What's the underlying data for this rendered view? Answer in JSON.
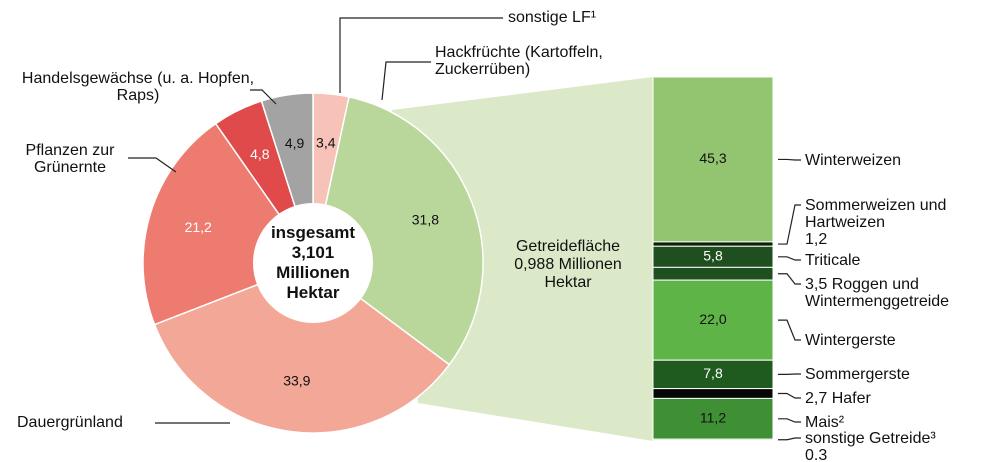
{
  "chart_data": [
    {
      "type": "pie",
      "center_label": "insgesamt 3,101 Millionen Hektar",
      "categories": [
        "Hackfrüchte (Kartoffeln, Zuckerrüben)",
        null,
        "Dauergrünland",
        "Pflanzen zur Grünernte",
        "Handelsgewächse (u. a. Hopfen, Raps)",
        "sonstige LF¹"
      ],
      "values": [
        3.4,
        31.8,
        33.9,
        21.2,
        4.8,
        4.9
      ],
      "value_labels": [
        "3,4",
        "31,8",
        "33,9",
        "21,2",
        "4,8",
        "4,9"
      ],
      "colors": [
        "#f7c2b7",
        "#b9d79b",
        "#f3a797",
        "#ee7b6f",
        "#e04a4a",
        "#a3a3a3"
      ]
    },
    {
      "type": "stacked-bar",
      "title": "Getreidefläche 0,988 Millionen Hektar",
      "categories": [
        "Winterweizen",
        "Sommerweizen und Hartweizen",
        "Triticale",
        "Roggen und Wintermenggetreide",
        "Wintergerste",
        "Sommergerste",
        "Hafer",
        "Mais²",
        "sonstige Getreide³"
      ],
      "values": [
        45.3,
        1.2,
        5.8,
        3.5,
        22.0,
        7.8,
        2.7,
        11.2,
        0.3
      ],
      "value_labels": [
        "45,3",
        "1,2",
        "5,8",
        "3,5",
        "22,0",
        "7,8",
        "2,7",
        "11,2",
        "0.3"
      ],
      "colors": [
        "#93c470",
        "#0b1f0b",
        "#1f4f1f",
        "#1f4f1f",
        "#5fb447",
        "#1f5a1f",
        "#050805",
        "#3f8f35",
        "#1f4f1f"
      ],
      "ylim": [
        0,
        100
      ]
    }
  ]
}
